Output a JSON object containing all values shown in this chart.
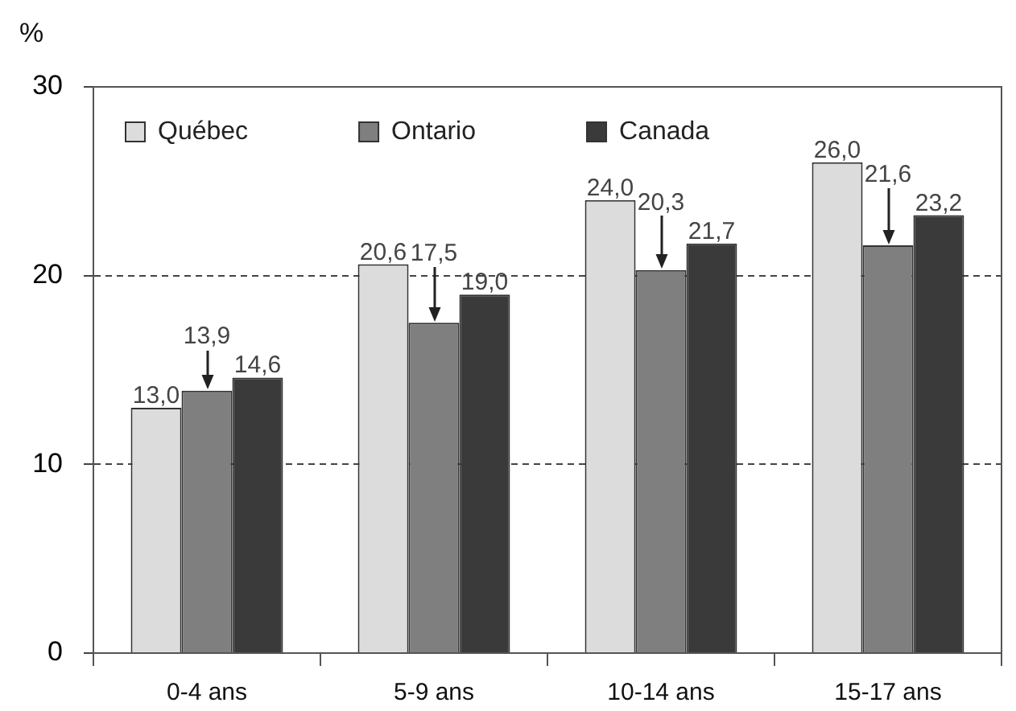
{
  "chart_data": {
    "type": "bar",
    "ylabel": "%",
    "categories": [
      "0-4 ans",
      "5-9 ans",
      "10-14 ans",
      "15-17 ans"
    ],
    "series": [
      {
        "name": "Québec",
        "color": "#dcdcdc",
        "values": [
          13.0,
          20.6,
          24.0,
          26.0
        ],
        "value_labels": [
          "13,0",
          "20,6",
          "24,0",
          "26,0"
        ]
      },
      {
        "name": "Ontario",
        "color": "#7f7f7f",
        "values": [
          13.9,
          17.5,
          20.3,
          21.6
        ],
        "value_labels": [
          "13,9",
          "17,5",
          "20,3",
          "21,6"
        ]
      },
      {
        "name": "Canada",
        "color": "#3a3a3a",
        "values": [
          14.6,
          19.0,
          21.7,
          23.2
        ],
        "value_labels": [
          "14,6",
          "19,0",
          "21,7",
          "23,2"
        ]
      }
    ],
    "ylim": [
      0,
      30
    ],
    "yticks": [
      0,
      10,
      20,
      30
    ],
    "grid": "y",
    "legend": "top left"
  }
}
